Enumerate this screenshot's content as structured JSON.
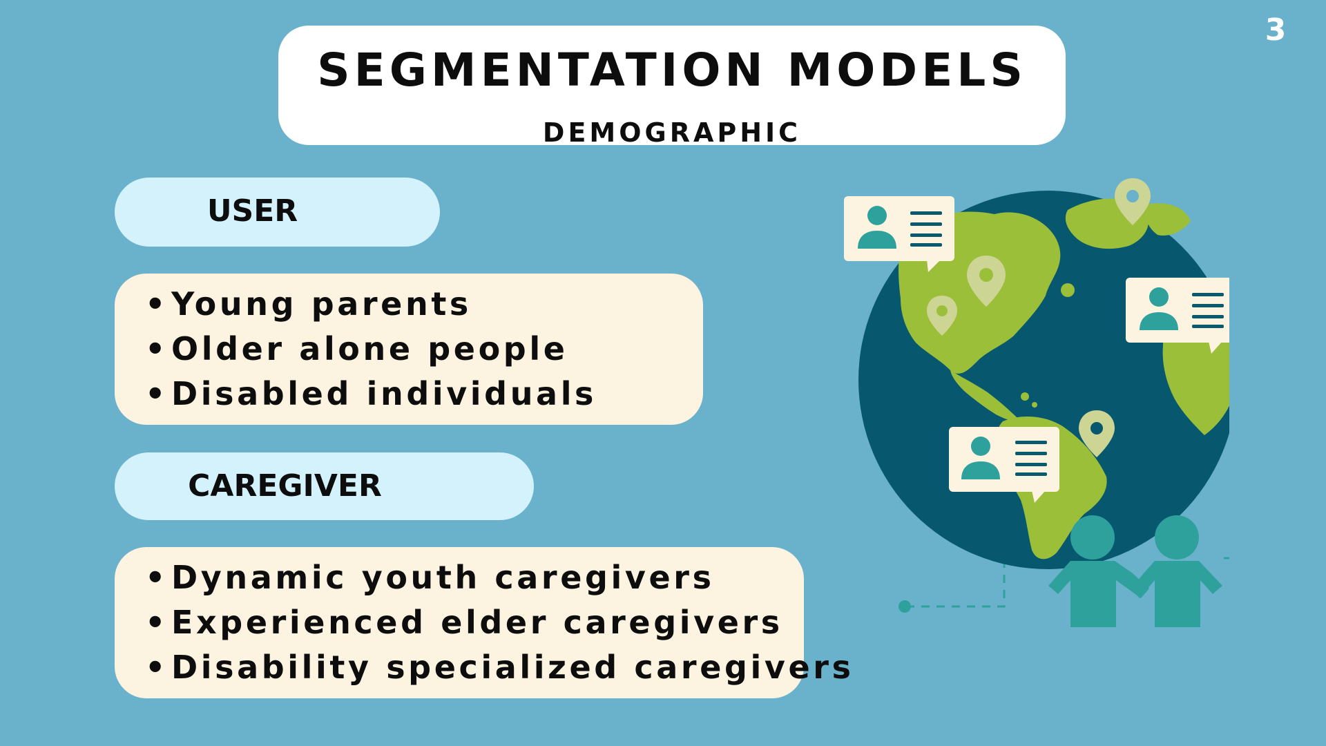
{
  "page_number": "3",
  "title": {
    "main": "SEGMENTATION MODELS",
    "sub": "DEMOGRAPHIC"
  },
  "user": {
    "label": "USER",
    "items": [
      "Young parents",
      "Older alone people",
      "Disabled individuals"
    ]
  },
  "caregiver": {
    "label": "CAREGIVER",
    "items": [
      "Dynamic youth caregivers",
      "Experienced elder caregivers",
      "Disability specialized caregivers"
    ]
  },
  "bullet": "•",
  "colors": {
    "background": "#6ab2cb",
    "title_box": "#ffffff",
    "label_pill": "#d4f2fb",
    "list_box": "#fdf3e1",
    "globe_ocean": "#07576f",
    "globe_land": "#9cbf3a",
    "person_teal": "#2fa19c",
    "card_bg": "#fdf3e1",
    "card_lines": "#0a5a6e",
    "pin_fill": "#cdd595"
  }
}
